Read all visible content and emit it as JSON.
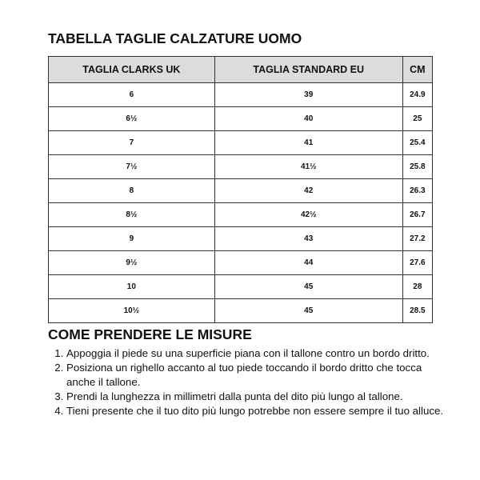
{
  "title": "TABELLA TAGLIE CALZATURE UOMO",
  "table": {
    "headers": [
      "TAGLIA CLARKS UK",
      "TAGLIA STANDARD EU",
      "CM"
    ],
    "rows": [
      [
        "6",
        "39",
        "24.9"
      ],
      [
        "6½",
        "40",
        "25"
      ],
      [
        "7",
        "41",
        "25.4"
      ],
      [
        "7½",
        "41½",
        "25.8"
      ],
      [
        "8",
        "42",
        "26.3"
      ],
      [
        "8½",
        "42½",
        "26.7"
      ],
      [
        "9",
        "43",
        "27.2"
      ],
      [
        "9½",
        "44",
        "27.6"
      ],
      [
        "10",
        "45",
        "28"
      ],
      [
        "10½",
        "45",
        "28.5"
      ]
    ]
  },
  "instructions": {
    "title": "COME PRENDERE LE MISURE",
    "steps": [
      "Appoggia il piede su una superficie piana con il tallone contro un bordo dritto.",
      "Posiziona un righello accanto al tuo piede toccando il bordo dritto che tocca anche il tallone.",
      "Prendi la lunghezza in millimetri dalla punta del dito più lungo al tallone.",
      "Tieni presente che il tuo dito più lungo potrebbe non essere sempre il tuo alluce."
    ]
  }
}
